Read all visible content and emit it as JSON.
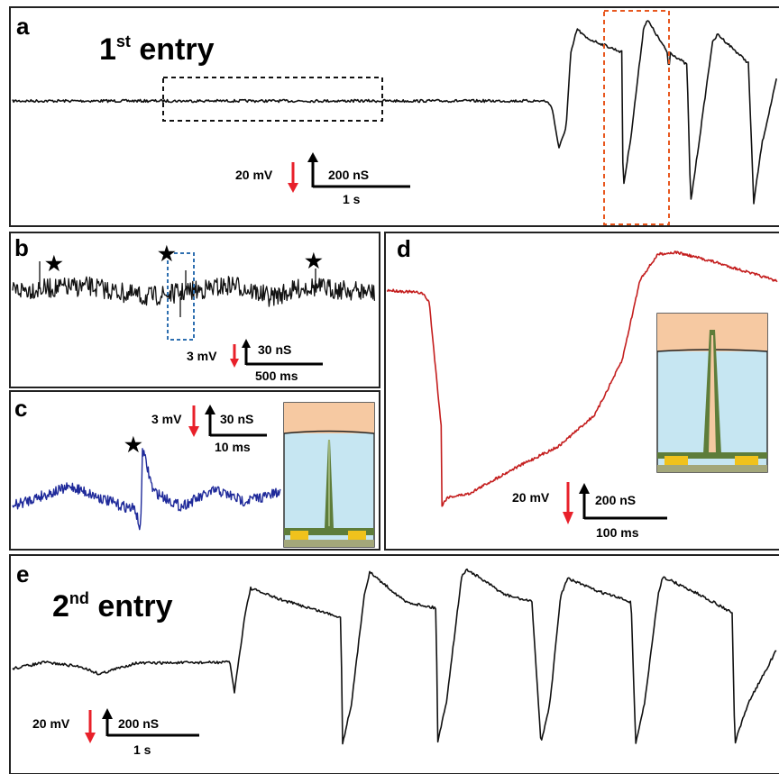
{
  "panels": {
    "a": {
      "letter": "a",
      "title_main": "1",
      "title_sup": "st",
      "title_rest": " entry",
      "scale": {
        "voltage": "20 mV",
        "conductance": "200 nS",
        "time": "1 s"
      }
    },
    "b": {
      "letter": "b",
      "scale": {
        "voltage": "3 mV",
        "conductance": "30 nS",
        "time": "500 ms"
      }
    },
    "c": {
      "letter": "c",
      "scale": {
        "voltage": "3 mV",
        "conductance": "30 nS",
        "time": "10 ms"
      }
    },
    "d": {
      "letter": "d",
      "scale": {
        "voltage": "20 mV",
        "conductance": "200 nS",
        "time": "100 ms"
      }
    },
    "e": {
      "letter": "e",
      "title_main": "2",
      "title_sup": "nd",
      "title_rest": " entry",
      "scale": {
        "voltage": "20 mV",
        "conductance": "200 nS",
        "time": "1 s"
      }
    }
  },
  "star_glyph": "★",
  "colors": {
    "trace_a": "#111111",
    "trace_b": "#111111",
    "trace_c": "#1f2a9a",
    "trace_d": "#c41e1e",
    "trace_e": "#111111",
    "voltage_arrow": "#e8202a",
    "highlight_dashed_black": "#111111",
    "highlight_dashed_orange": "#e8571e",
    "highlight_dashed_blue": "#2e6fb0",
    "inset_cell": "#f6c9a2",
    "inset_medium": "#c6e6f2",
    "inset_pillar": "#5e7d3a",
    "inset_substrate": "#a3a77a",
    "inset_electrode": "#f0c21c"
  },
  "chart_data": [
    {
      "panel": "a",
      "type": "line",
      "title": "1st entry",
      "xlabel": "",
      "ylabel": "",
      "series": [
        {
          "name": "",
          "x_s": [
            0,
            2,
            4,
            5.95,
            6.1,
            6.25,
            6.4,
            7.1,
            7.15,
            7.3,
            7.5,
            7.8,
            8.0,
            8.05,
            8.2,
            8.5,
            8.8,
            9.0,
            9.05
          ],
          "y_mV": [
            0,
            0,
            0,
            0,
            -15,
            22,
            18,
            14,
            -22,
            5,
            22,
            12,
            10,
            -20,
            5,
            22,
            14,
            12,
            -20
          ]
        }
      ]
    },
    {
      "panel": "b",
      "type": "line",
      "xlabel": "",
      "ylabel": "",
      "series": [
        {
          "name": "",
          "annotations": [
            "★",
            "★",
            "★"
          ]
        }
      ]
    },
    {
      "panel": "c",
      "type": "line",
      "xlabel": "",
      "ylabel": "",
      "series": [
        {
          "name": "",
          "annotations": [
            "★"
          ]
        }
      ]
    },
    {
      "panel": "d",
      "type": "line",
      "xlabel": "",
      "ylabel": "",
      "series": [
        {
          "name": "",
          "x_ms": [
            0,
            20,
            30,
            50,
            60,
            100,
            200,
            300,
            350,
            380,
            450
          ],
          "y_mV": [
            0,
            0,
            -10,
            -60,
            -58,
            -52,
            -40,
            -20,
            10,
            15,
            10
          ]
        }
      ]
    },
    {
      "panel": "e",
      "type": "line",
      "title": "2nd entry",
      "xlabel": "",
      "ylabel": "",
      "series": [
        {
          "name": "",
          "x_s": [
            0,
            1.5,
            2.3,
            2.4,
            3.0,
            3.5,
            3.55,
            3.8,
            4.5,
            4.55,
            4.8,
            5.7,
            5.75,
            6.0,
            6.8,
            6.85,
            7.0
          ],
          "y_mV": [
            0,
            0,
            -2,
            10,
            8,
            7,
            -25,
            15,
            8,
            -25,
            15,
            8,
            -25,
            15,
            8,
            -25,
            12
          ]
        }
      ]
    }
  ]
}
